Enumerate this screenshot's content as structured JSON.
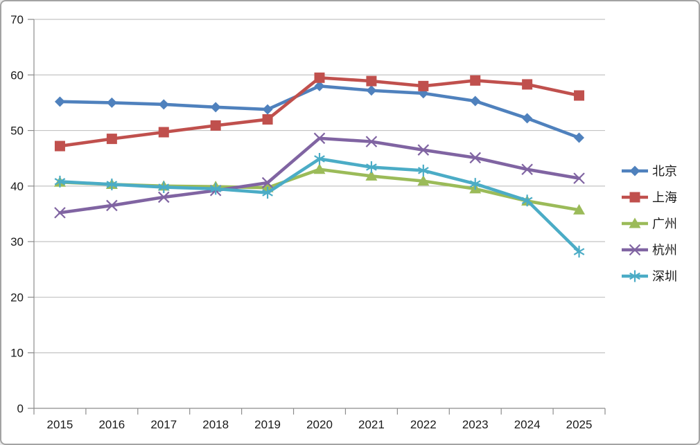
{
  "chart_data": {
    "type": "line",
    "title": "",
    "xlabel": "",
    "ylabel": "",
    "categories": [
      "2015",
      "2016",
      "2017",
      "2018",
      "2019",
      "2020",
      "2021",
      "2022",
      "2023",
      "2024",
      "2025"
    ],
    "series": [
      {
        "key": "beijing",
        "name": "北京",
        "color": "#4F81BD",
        "marker": "diamond",
        "values": [
          55.2,
          55.0,
          54.7,
          54.2,
          53.8,
          58.0,
          57.2,
          56.7,
          55.3,
          52.2,
          48.7
        ]
      },
      {
        "key": "shanghai",
        "name": "上海",
        "color": "#C0504D",
        "marker": "square",
        "values": [
          47.2,
          48.5,
          49.7,
          50.9,
          52.0,
          59.5,
          58.9,
          58.0,
          59.0,
          58.3,
          56.3
        ]
      },
      {
        "key": "guangzhou",
        "name": "广州",
        "color": "#9BBB59",
        "marker": "triangle",
        "values": [
          40.7,
          40.3,
          40.0,
          39.9,
          39.7,
          43.0,
          41.8,
          40.9,
          39.5,
          37.3,
          35.7
        ]
      },
      {
        "key": "hangzhou",
        "name": "杭州",
        "color": "#8064A2",
        "marker": "cross",
        "values": [
          35.2,
          36.5,
          38.0,
          39.2,
          40.6,
          48.6,
          48.0,
          46.5,
          45.1,
          43.0,
          41.4
        ]
      },
      {
        "key": "shenzhen",
        "name": "深圳",
        "color": "#4BACC6",
        "marker": "asterisk",
        "values": [
          40.8,
          40.3,
          39.8,
          39.5,
          38.8,
          44.9,
          43.4,
          42.8,
          40.4,
          37.4,
          28.2
        ]
      }
    ],
    "ylim": [
      0,
      70
    ],
    "ytick_step": 10,
    "ytick_labels": [
      "0",
      "10",
      "20",
      "30",
      "40",
      "50",
      "60",
      "70"
    ],
    "grid": true,
    "legend_position": "right",
    "colors": {
      "gridline": "#c3c3c3",
      "axis": "#8c8c8c",
      "text": "#1a1a1a",
      "background": "#ffffff",
      "frame_border": "#a3a3a3"
    }
  }
}
